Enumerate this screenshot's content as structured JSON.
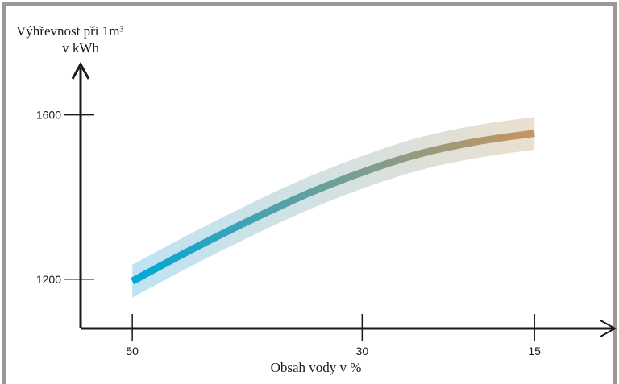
{
  "chart_data": {
    "type": "line",
    "ylabel_line1": "Výhřevnost při 1m³",
    "ylabel_line2": "v kWh",
    "xlabel": "Obsah vody v %",
    "x_ticks": [
      "50",
      "30",
      "15"
    ],
    "y_ticks": [
      "1600",
      "1200"
    ],
    "x_reversed": true,
    "series": [
      {
        "x": [
          50,
          45,
          40,
          35,
          30,
          25,
          20,
          15
        ],
        "y": [
          1195,
          1270,
          1340,
          1405,
          1460,
          1505,
          1535,
          1555
        ]
      }
    ],
    "band_halfwidth": 40,
    "xlim": [
      54.5,
      8
    ],
    "ylim": [
      1080,
      1715
    ],
    "grid": false,
    "colors": {
      "frame": "#999999",
      "axis": "#1a1a1a",
      "line_start": "#00a8d8",
      "line_mid": "#6f9f98",
      "line_end": "#c8955e",
      "band_start": "#bfe3f3",
      "band_end": "#eadfcf"
    }
  }
}
